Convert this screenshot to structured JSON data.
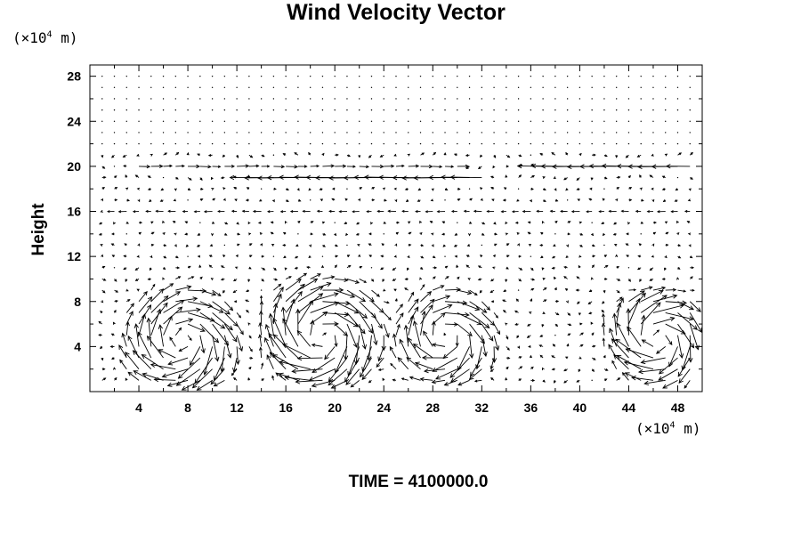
{
  "chart_data": {
    "type": "vector_field",
    "title": "Wind Velocity Vector",
    "ylabel": "Height",
    "x_unit_label_prefix": "(×10",
    "x_unit_label_exp": "4",
    "x_unit_label_suffix": " m)",
    "y_unit_label_prefix": "(×10",
    "y_unit_label_exp": "4",
    "y_unit_label_suffix": " m)",
    "xlim": [
      0,
      50
    ],
    "ylim": [
      0,
      29
    ],
    "x_ticks": [
      4,
      8,
      12,
      16,
      20,
      24,
      28,
      32,
      36,
      40,
      44,
      48
    ],
    "y_ticks": [
      4,
      8,
      12,
      16,
      20,
      24,
      28
    ],
    "grid": false,
    "x_spacing": 1.0,
    "y_levels": [
      1,
      2,
      3,
      4,
      5,
      6,
      7,
      8,
      9,
      10,
      11,
      12,
      13,
      14,
      15,
      16,
      17,
      18,
      19,
      20,
      21,
      22,
      23,
      24,
      25,
      26,
      27,
      28
    ],
    "jet_levels": [
      {
        "y": 19,
        "x_from": 14,
        "x_to": 32,
        "u": -3.0
      },
      {
        "y": 20,
        "x_from": 37,
        "x_to": 50,
        "u": -2.6
      },
      {
        "y": 20,
        "x_from": 4,
        "x_to": 30,
        "u": 1.0
      },
      {
        "y": 16,
        "x_from": 2,
        "x_to": 50,
        "u": -0.8
      }
    ],
    "vortices": [
      {
        "cx": 7.5,
        "cy": 4.5,
        "r": 4.2,
        "sense": "clockwise",
        "strength": 3.2
      },
      {
        "cx": 19.0,
        "cy": 5.0,
        "r": 4.5,
        "sense": "clockwise",
        "strength": 3.4
      },
      {
        "cx": 29.0,
        "cy": 4.8,
        "r": 3.8,
        "sense": "clockwise",
        "strength": 2.8
      },
      {
        "cx": 46.5,
        "cy": 4.8,
        "r": 3.8,
        "sense": "clockwise",
        "strength": 3.2
      }
    ]
  },
  "time_label": "TIME = 4100000.0"
}
